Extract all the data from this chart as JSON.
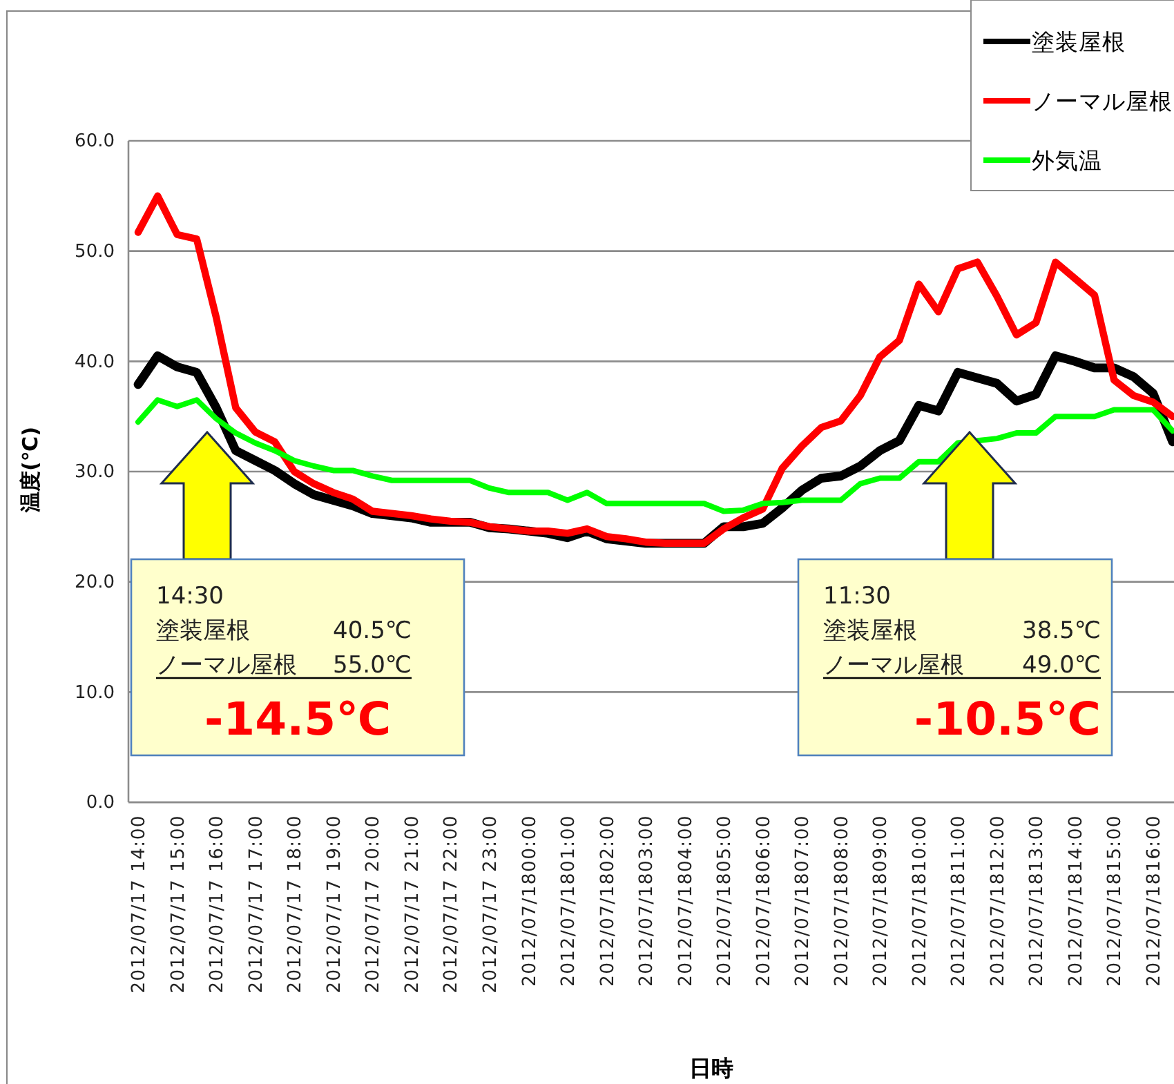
{
  "chart_data": {
    "type": "line",
    "xlabel": "日時",
    "ylabel": "温度(℃)",
    "categories": [
      "2012/07/17 14:00",
      null,
      "2012/07/17 15:00",
      null,
      "2012/07/17 16:00",
      null,
      "2012/07/17 17:00",
      null,
      "2012/07/17 18:00",
      null,
      "2012/07/17 19:00",
      null,
      "2012/07/17 20:00",
      null,
      "2012/07/17 21:00",
      null,
      "2012/07/17 22:00",
      null,
      "2012/07/17 23:00",
      null,
      "2012/07/1800:00",
      null,
      "2012/07/1801:00",
      null,
      "2012/07/1802:00",
      null,
      "2012/07/1803:00",
      null,
      "2012/07/1804:00",
      null,
      "2012/07/1805:00",
      null,
      "2012/07/1806:00",
      null,
      "2012/07/1807:00",
      null,
      "2012/07/1808:00",
      null,
      "2012/07/1809:00",
      null,
      "2012/07/1810:00",
      null,
      "2012/07/1811:00",
      null,
      "2012/07/1812:00",
      null,
      "2012/07/1813:00",
      null,
      "2012/07/1814:00",
      null,
      "2012/07/1815:00",
      null,
      "2012/07/1816:00",
      null
    ],
    "series": [
      {
        "name": "塗装屋根",
        "color": "#000000",
        "values": [
          37.9,
          40.5,
          39.5,
          39.0,
          35.8,
          31.9,
          31.0,
          30.1,
          28.9,
          27.9,
          27.4,
          26.9,
          26.2,
          26.0,
          25.8,
          25.4,
          25.4,
          25.4,
          24.9,
          24.8,
          24.6,
          24.4,
          24.0,
          24.6,
          23.9,
          23.7,
          23.5,
          23.5,
          23.5,
          23.5,
          25.0,
          25.0,
          25.3,
          26.7,
          28.3,
          29.4,
          29.6,
          30.5,
          31.9,
          32.8,
          36.0,
          35.5,
          39.0,
          38.5,
          38.0,
          36.4,
          37.0,
          40.5,
          40.0,
          39.4,
          39.4,
          38.6,
          37.1,
          32.7
        ]
      },
      {
        "name": "ノーマル屋根",
        "color": "#ff0000",
        "values": [
          51.7,
          55.0,
          51.5,
          51.1,
          44.0,
          35.8,
          33.6,
          32.7,
          30.0,
          28.9,
          28.1,
          27.5,
          26.4,
          26.2,
          26.0,
          25.7,
          25.5,
          25.4,
          25.0,
          24.8,
          24.6,
          24.6,
          24.4,
          24.8,
          24.1,
          23.9,
          23.6,
          23.5,
          23.5,
          23.5,
          24.8,
          25.8,
          26.6,
          30.3,
          32.3,
          34.0,
          34.6,
          36.9,
          40.4,
          41.9,
          47.0,
          44.5,
          48.4,
          49.0,
          45.9,
          42.4,
          43.5,
          49.0,
          47.5,
          46.0,
          38.3,
          36.9,
          36.3,
          35.0
        ]
      },
      {
        "name": "外気温",
        "color": "#00ff00",
        "values": [
          34.5,
          36.5,
          35.9,
          36.5,
          34.8,
          33.5,
          32.6,
          31.9,
          31.0,
          30.5,
          30.1,
          30.1,
          29.6,
          29.2,
          29.2,
          29.2,
          29.2,
          29.2,
          28.5,
          28.1,
          28.1,
          28.1,
          27.4,
          28.1,
          27.1,
          27.1,
          27.1,
          27.1,
          27.1,
          27.1,
          26.4,
          26.5,
          27.1,
          27.2,
          27.4,
          27.4,
          27.4,
          28.9,
          29.4,
          29.4,
          30.9,
          30.9,
          32.6,
          32.8,
          33.0,
          33.5,
          33.5,
          35.0,
          35.0,
          35.0,
          35.6,
          35.6,
          35.6,
          33.7
        ]
      }
    ],
    "ylim": [
      0,
      60
    ],
    "yticks": [
      {
        "value": 0,
        "label": "0.0"
      },
      {
        "value": 10,
        "label": "10.0"
      },
      {
        "value": 20,
        "label": "20.0"
      },
      {
        "value": 30,
        "label": "30.0"
      },
      {
        "value": 40,
        "label": "40.0"
      },
      {
        "value": 50,
        "label": "50.0"
      },
      {
        "value": 60,
        "label": "60.0"
      }
    ],
    "grid": "y",
    "legend": "top right",
    "marker": "none",
    "line_style": "solid",
    "annotations": [
      "14:30\n塗装屋根 40.5℃\nノーマル屋根 55.0℃\n-14.5℃",
      "11:30\n塗装屋根 38.5℃\nノーマル屋根 49.0℃\n-10.5℃"
    ]
  }
}
